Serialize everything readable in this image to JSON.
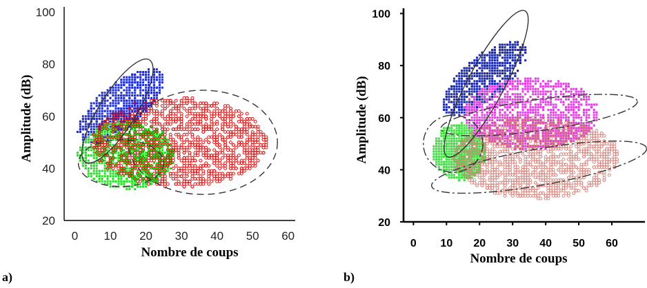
{
  "panel_labels": [
    "a)",
    "b)"
  ],
  "chart_data": [
    {
      "type": "scatter",
      "xlabel": "Nombre de coups",
      "ylabel": "Amplitude (dB)",
      "xticks": [
        "0",
        "10",
        "20",
        "30",
        "40",
        "50",
        "60"
      ],
      "yticks": [
        "20",
        "40",
        "60",
        "80",
        "100"
      ],
      "xlim": [
        -3,
        62
      ],
      "ylim": [
        20,
        102
      ],
      "colors": {
        "blue": "#1f2fd0",
        "green": "#22dd22",
        "red": "#e01010"
      },
      "series": [
        {
          "color": "blue",
          "x_range": [
            1,
            25
          ],
          "y_range": [
            44,
            84
          ],
          "density": "dense"
        },
        {
          "color": "green",
          "x_range": [
            1,
            28
          ],
          "y_range": [
            32,
            58
          ],
          "density": "dense"
        },
        {
          "color": "red",
          "x_range": [
            5,
            54
          ],
          "y_range": [
            33,
            67
          ],
          "density": "dense"
        }
      ],
      "ellipses": [
        {
          "style": "solid",
          "cx": 12,
          "cy": 62,
          "rx": 17,
          "ry": 7,
          "angle_deg": 58
        },
        {
          "style": "dashed",
          "cx": 13,
          "cy": 42,
          "rx": 12,
          "ry": 9
        },
        {
          "style": "dashed",
          "cx": 36,
          "cy": 50,
          "rx": 21,
          "ry": 20
        }
      ]
    },
    {
      "type": "scatter",
      "xlabel": "Nombre de coups",
      "ylabel": "Amplitude (dB)",
      "xticks": [
        "0",
        "10",
        "20",
        "30",
        "40",
        "50",
        "60"
      ],
      "yticks": [
        "20",
        "40",
        "60",
        "80",
        "100"
      ],
      "xlim": [
        -3,
        70
      ],
      "ylim": [
        20,
        102
      ],
      "colors": {
        "blue": "#1a2aa8",
        "green": "#44dd44",
        "magenta": "#e040e0",
        "salmon": "#d88880"
      },
      "series": [
        {
          "color": "blue",
          "x_range": [
            9,
            34
          ],
          "y_range": [
            55,
            95
          ],
          "density": "dense"
        },
        {
          "color": "green",
          "x_range": [
            6,
            22
          ],
          "y_range": [
            36,
            58
          ],
          "density": "dense"
        },
        {
          "color": "magenta",
          "x_range": [
            15,
            56
          ],
          "y_range": [
            48,
            75
          ],
          "density": "dense"
        },
        {
          "color": "salmon",
          "x_range": [
            12,
            62
          ],
          "y_range": [
            29,
            60
          ],
          "density": "dense"
        }
      ],
      "ellipses": [
        {
          "style": "solid",
          "cx": 22,
          "cy": 73,
          "rx": 25,
          "ry": 7,
          "angle_deg": 62
        },
        {
          "style": "dashdot",
          "cx": 12,
          "cy": 50,
          "rx": 9,
          "ry": 11
        },
        {
          "style": "dashdot",
          "cx": 38,
          "cy": 61,
          "rx": 30,
          "ry": 6,
          "angle_deg": 8
        },
        {
          "style": "dashdot",
          "cx": 38,
          "cy": 41,
          "rx": 33,
          "ry": 7,
          "angle_deg": 10
        }
      ]
    }
  ]
}
